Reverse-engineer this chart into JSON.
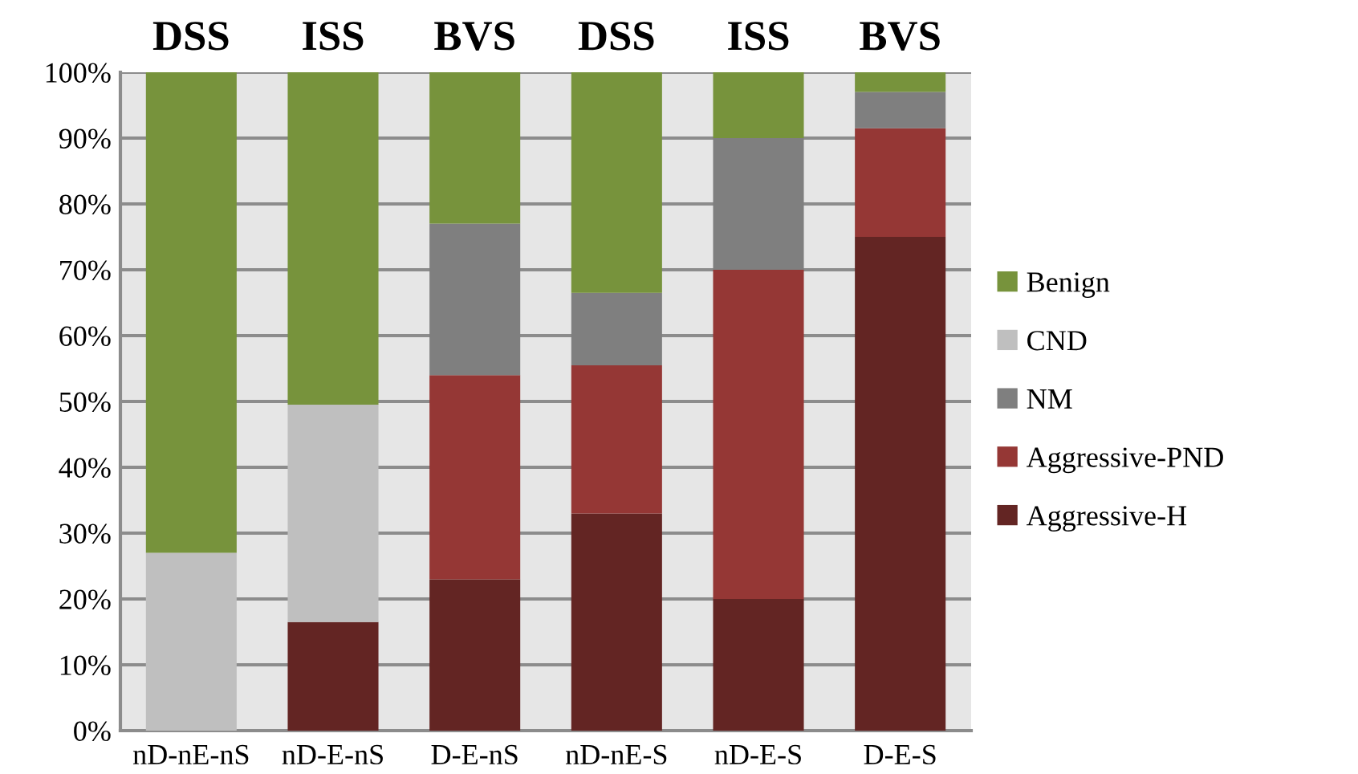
{
  "chart_data": {
    "type": "bar",
    "stacked": true,
    "categories": [
      "nD-nE-nS",
      "nD-E-nS",
      "D-E-nS",
      "nD-nE-S",
      "nD-E-S",
      "D-E-S"
    ],
    "series": [
      {
        "name": "Aggressive-H",
        "color": "#632523",
        "values": [
          0,
          16.5,
          23,
          33,
          20,
          75
        ]
      },
      {
        "name": "Aggressive-PND",
        "color": "#953735",
        "values": [
          0,
          0,
          31,
          22.5,
          50,
          16.5
        ]
      },
      {
        "name": "NM",
        "color": "#7f7f7f",
        "values": [
          0,
          0,
          23,
          11,
          20,
          5.5
        ]
      },
      {
        "name": "CND",
        "color": "#bfbfbf",
        "values": [
          27,
          33,
          0,
          0,
          0,
          0
        ]
      },
      {
        "name": "Benign",
        "color": "#77933c",
        "values": [
          73,
          50.5,
          23,
          33.5,
          10,
          3
        ]
      }
    ],
    "ylim": [
      0,
      100
    ],
    "yticks": [
      {
        "value": 0,
        "label": "0%"
      },
      {
        "value": 10,
        "label": "10%"
      },
      {
        "value": 20,
        "label": "20%"
      },
      {
        "value": 30,
        "label": "30%"
      },
      {
        "value": 40,
        "label": "40%"
      },
      {
        "value": 50,
        "label": "50%"
      },
      {
        "value": 60,
        "label": "60%"
      },
      {
        "value": 70,
        "label": "70%"
      },
      {
        "value": 80,
        "label": "80%"
      },
      {
        "value": 90,
        "label": "90%"
      },
      {
        "value": 100,
        "label": "100%"
      }
    ],
    "grid": "y",
    "legend": "right",
    "annotations": [
      {
        "text": "DSS",
        "x": "nD-nE-nS",
        "y": 100
      },
      {
        "text": "ISS",
        "x": "nD-E-nS",
        "y": 100
      },
      {
        "text": "BVS",
        "x": "D-E-nS",
        "y": 100
      },
      {
        "text": "DSS",
        "x": "nD-nE-S",
        "y": 100
      },
      {
        "text": "ISS",
        "x": "nD-E-S",
        "y": 100
      },
      {
        "text": "BVS",
        "x": "D-E-S",
        "y": 100
      }
    ]
  }
}
